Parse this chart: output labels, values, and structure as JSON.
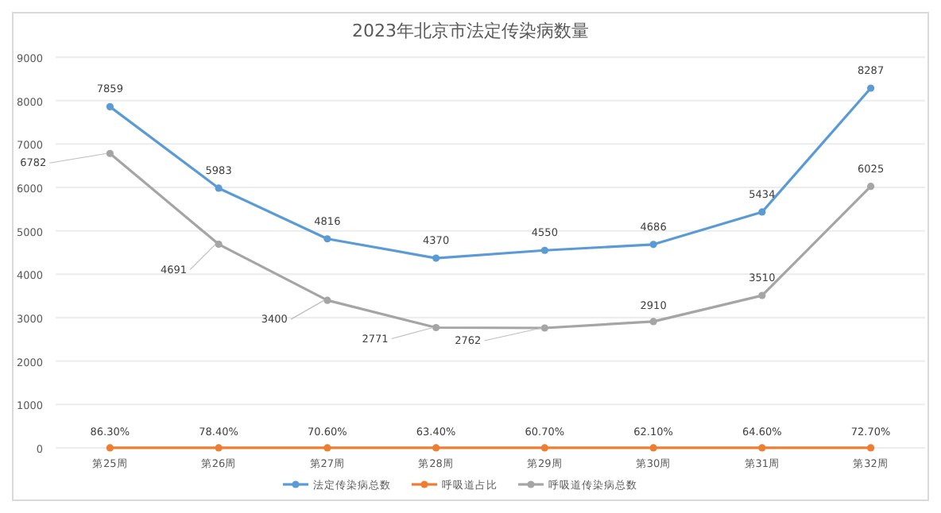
{
  "chart_data": {
    "type": "line",
    "title": "2023年北京市法定传染病数量",
    "categories": [
      "第25周",
      "第26周",
      "第27周",
      "第28周",
      "第29周",
      "第30周",
      "第31周",
      "第32周"
    ],
    "series": [
      {
        "name": "法定传染病总数",
        "color": "#5b9bd5",
        "values": [
          7859,
          5983,
          4816,
          4370,
          4550,
          4686,
          5434,
          8287
        ],
        "value_labels": [
          "7859",
          "5983",
          "4816",
          "4370",
          "4550",
          "4686",
          "5434",
          "8287"
        ]
      },
      {
        "name": "呼吸道占比",
        "color": "#ed7d31",
        "values": [
          0.863,
          0.784,
          0.706,
          0.634,
          0.607,
          0.621,
          0.646,
          0.727
        ],
        "value_labels": [
          "86.30%",
          "78.40%",
          "70.60%",
          "63.40%",
          "60.70%",
          "62.10%",
          "64.60%",
          "72.70%"
        ]
      },
      {
        "name": "呼吸道传染病总数",
        "color": "#a5a5a5",
        "values": [
          6782,
          4691,
          3400,
          2771,
          2762,
          2910,
          3510,
          6025
        ],
        "value_labels": [
          "6782",
          "4691",
          "3400",
          "2771",
          "2762",
          "2910",
          "3510",
          "6025"
        ]
      }
    ],
    "ylim": [
      0,
      9000
    ],
    "yticks": [
      0,
      1000,
      2000,
      3000,
      4000,
      5000,
      6000,
      7000,
      8000,
      9000
    ],
    "grid": "y",
    "legend": "bottom",
    "marker": "circle",
    "line_style": "solid"
  }
}
